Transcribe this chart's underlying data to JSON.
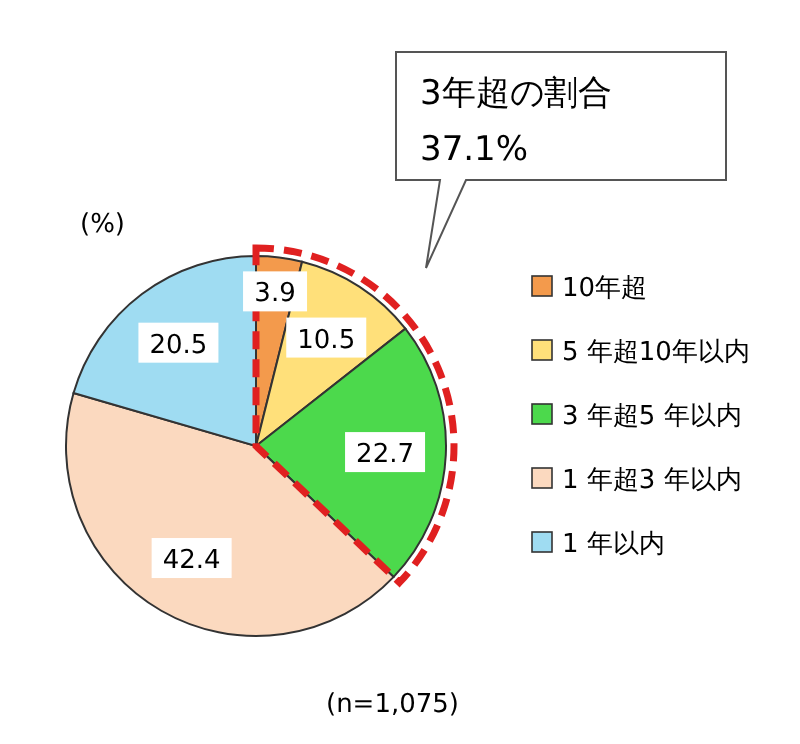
{
  "chart_data": {
    "type": "pie",
    "categories": [
      "10年超",
      "5 年超10年以内",
      "3 年超5 年以内",
      "1 年超3 年以内",
      "1 年以内"
    ],
    "values": [
      3.9,
      10.5,
      22.7,
      42.4,
      20.5
    ],
    "colors": [
      "#f39a4c",
      "#ffe07a",
      "#4cd94c",
      "#fbd9bf",
      "#9fdcf2"
    ],
    "data_labels": true,
    "legend": "right",
    "annotations": [
      "3年超の割合\n37.1%",
      "(%)",
      "(n=1,075)"
    ]
  }
}
